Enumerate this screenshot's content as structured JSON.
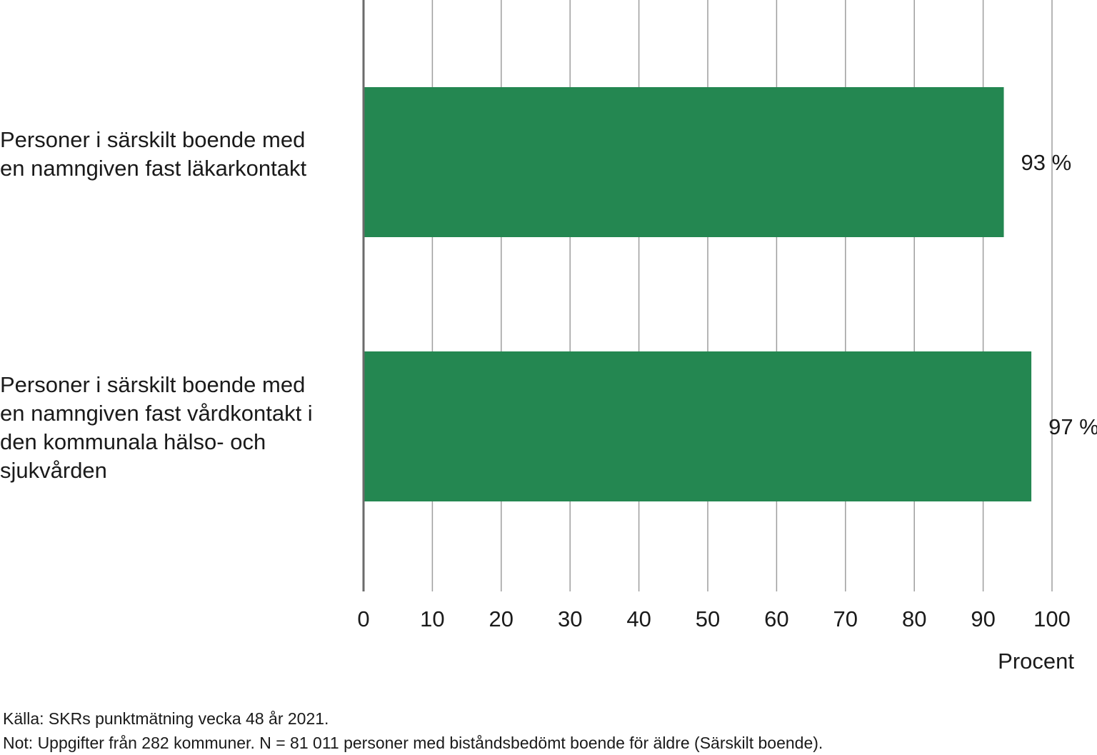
{
  "chart_data": {
    "type": "bar",
    "orientation": "horizontal",
    "categories": [
      "Personer i särskilt boende med en namngiven fast läkarkontakt",
      "Personer i särskilt boende med en namngiven fast vårdkontakt i den kommunala hälso- och sjukvården"
    ],
    "values": [
      93,
      97
    ],
    "value_labels": [
      "93 %",
      "97 %"
    ],
    "xlabel": "Procent",
    "ylabel": "",
    "xlim": [
      0,
      100
    ],
    "xticks": [
      0,
      10,
      20,
      30,
      40,
      50,
      60,
      70,
      80,
      90,
      100
    ],
    "tick_labels": [
      "0",
      "10",
      "20",
      "30",
      "40",
      "50",
      "60",
      "70",
      "80",
      "90",
      "100"
    ],
    "grid": true,
    "legend": "none",
    "bar_color": "#248751",
    "grid_color": "#9e9e9e",
    "axis_color": "#6b6b6b"
  },
  "footnotes": {
    "source": "Källa: SKRs punktmätning vecka 48 år 2021.",
    "note": "Not: Uppgifter från 282 kommuner. N = 81 011 personer med biståndsbedömt boende för äldre (Särskilt boende)."
  }
}
